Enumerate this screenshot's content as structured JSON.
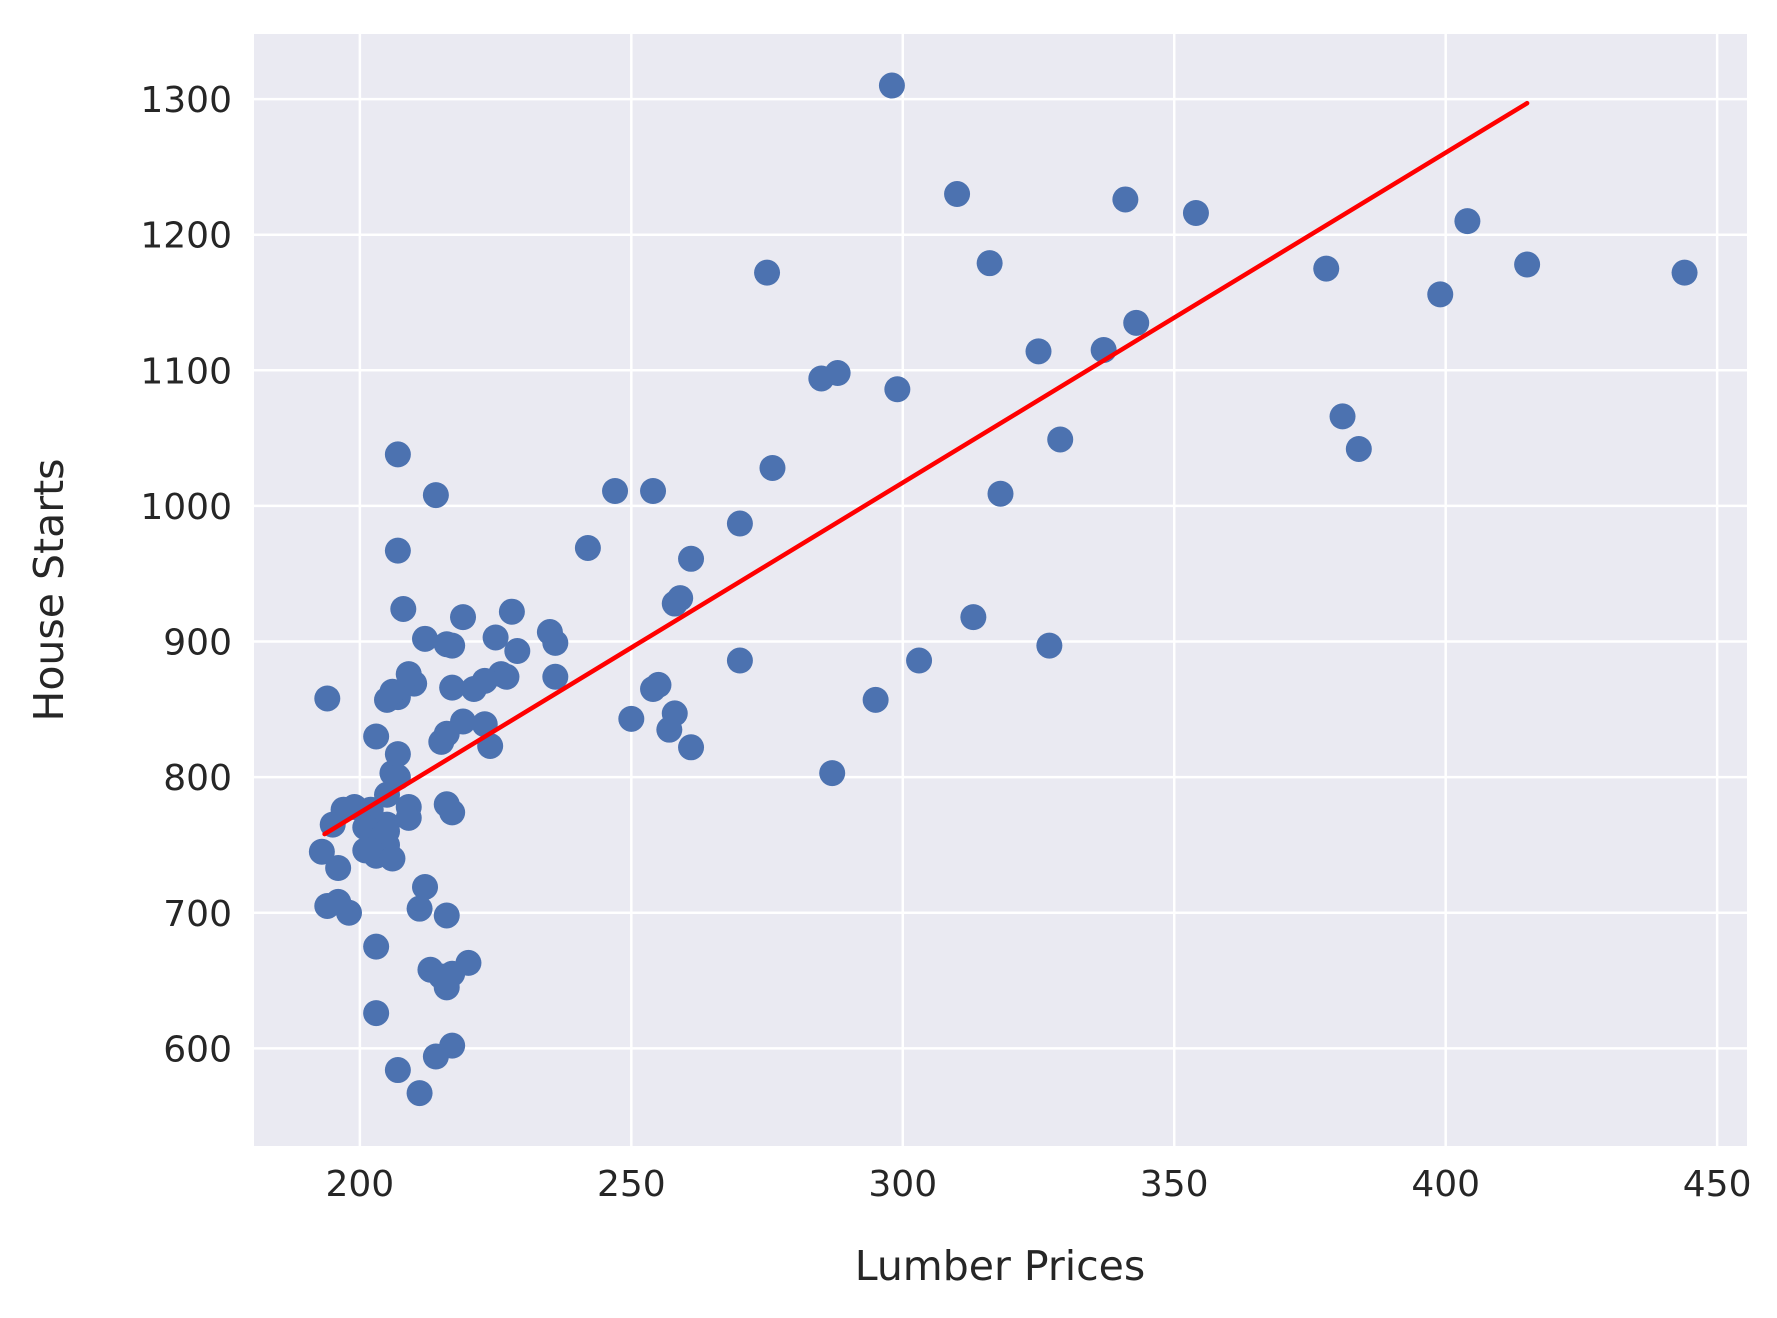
{
  "chart_data": {
    "type": "scatter",
    "title": "",
    "xlabel": "Lumber Prices",
    "ylabel": "House Starts",
    "xlim": [
      180.5,
      455.5
    ],
    "ylim": [
      528,
      1348
    ],
    "xticks": [
      200,
      250,
      300,
      350,
      400,
      450
    ],
    "yticks": [
      600,
      700,
      800,
      900,
      1000,
      1100,
      1200,
      1300
    ],
    "grid": true,
    "legend": "none",
    "colors": {
      "background": "#eaeaf2",
      "grid": "#ffffff",
      "points": "#4c72b0",
      "fit_line": "#ff0000"
    },
    "series": [
      {
        "kind": "points",
        "x": [
          298,
          310,
          341,
          354,
          316,
          275,
          404,
          378,
          415,
          444,
          399,
          343,
          325,
          337,
          288,
          285,
          299,
          381,
          384,
          329,
          276,
          247,
          254,
          318,
          207,
          214,
          270,
          242,
          261,
          258,
          259,
          207,
          228,
          219,
          208,
          212,
          216,
          225,
          235,
          236,
          229,
          226,
          227,
          236,
          217,
          217,
          210,
          209,
          207,
          205,
          206,
          221,
          223,
          194,
          203,
          219,
          223,
          224,
          216,
          215,
          207,
          206,
          207,
          209,
          205,
          216,
          217,
          209,
          202,
          201,
          199,
          197,
          195,
          204,
          205,
          205,
          196,
          203,
          193,
          206,
          205,
          201,
          212,
          194,
          196,
          198,
          211,
          216,
          203,
          213,
          215,
          216,
          220,
          217,
          203,
          207,
          214,
          217,
          211,
          313,
          327,
          303,
          295,
          287,
          270,
          255,
          254,
          250,
          258,
          257,
          261
        ],
        "y": [
          1310,
          1230,
          1226,
          1216,
          1179,
          1172,
          1210,
          1175,
          1178,
          1172,
          1156,
          1135,
          1114,
          1115,
          1098,
          1094,
          1086,
          1066,
          1042,
          1049,
          1028,
          1011,
          1011,
          1009,
          1038,
          1008,
          987,
          969,
          961,
          928,
          932,
          967,
          922,
          918,
          924,
          902,
          898,
          903,
          907,
          899,
          893,
          876,
          874,
          874,
          897,
          866,
          869,
          876,
          859,
          857,
          863,
          865,
          871,
          858,
          830,
          841,
          839,
          823,
          832,
          826,
          817,
          803,
          800,
          778,
          787,
          780,
          774,
          770,
          776,
          763,
          778,
          776,
          765,
          755,
          765,
          750,
          733,
          742,
          745,
          740,
          760,
          746,
          719,
          705,
          708,
          700,
          703,
          698,
          675,
          658,
          653,
          645,
          663,
          655,
          626,
          584,
          594,
          602,
          567,
          918,
          897,
          886,
          857,
          803,
          886,
          868,
          865,
          843,
          847,
          835,
          822
        ]
      },
      {
        "kind": "fit-line",
        "x": [
          193.5,
          415
        ],
        "y": [
          758,
          1297
        ]
      }
    ]
  }
}
